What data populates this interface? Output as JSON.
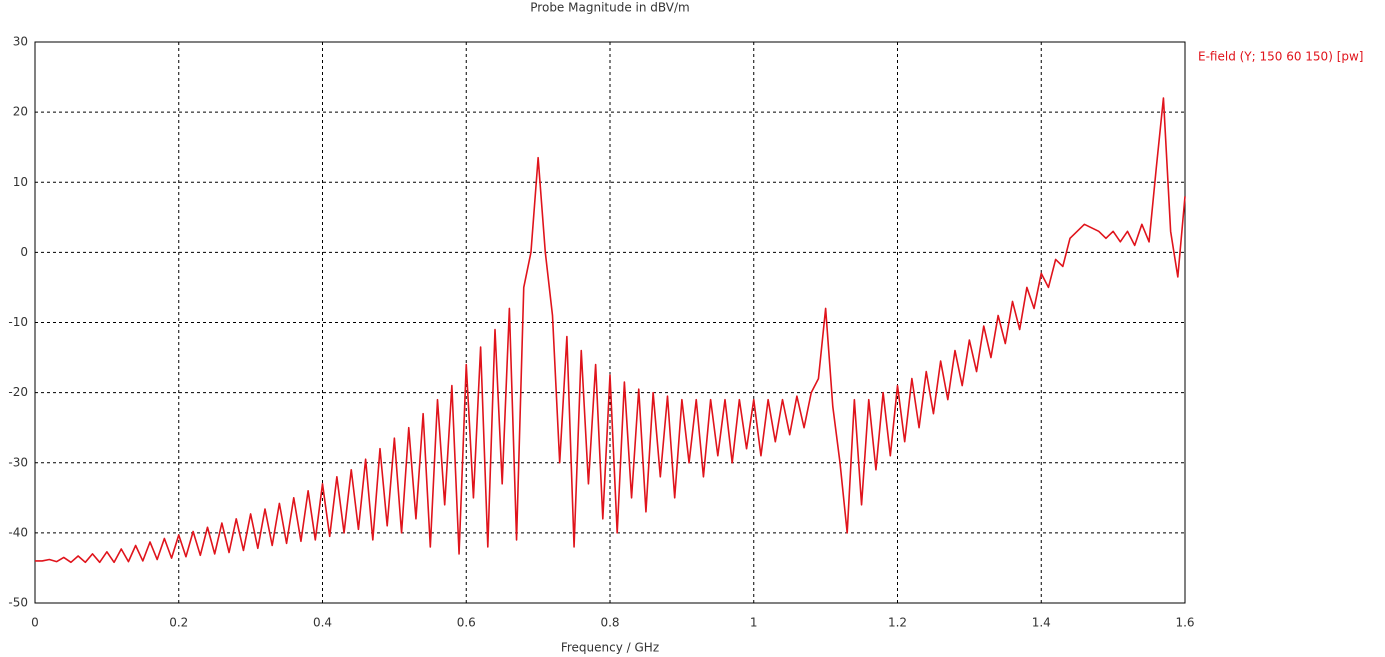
{
  "chart_data": {
    "type": "line",
    "title": "Probe Magnitude in dBV/m",
    "x_label": "Frequency / GHz",
    "x": [
      0,
      0.01,
      0.02,
      0.03,
      0.04,
      0.05,
      0.06,
      0.07,
      0.08,
      0.09,
      0.1,
      0.11,
      0.12,
      0.13,
      0.14,
      0.15,
      0.16,
      0.17,
      0.18,
      0.19,
      0.2,
      0.21,
      0.22,
      0.23,
      0.24,
      0.25,
      0.26,
      0.27,
      0.28,
      0.29,
      0.3,
      0.31,
      0.32,
      0.33,
      0.34,
      0.35,
      0.36,
      0.37,
      0.38,
      0.39,
      0.4,
      0.41,
      0.42,
      0.43,
      0.44,
      0.45,
      0.46,
      0.47,
      0.48,
      0.49,
      0.5,
      0.51,
      0.52,
      0.53,
      0.54,
      0.55,
      0.56,
      0.57,
      0.58,
      0.59,
      0.6,
      0.61,
      0.62,
      0.63,
      0.64,
      0.65,
      0.66,
      0.67,
      0.68,
      0.69,
      0.7,
      0.71,
      0.72,
      0.73,
      0.74,
      0.75,
      0.76,
      0.77,
      0.78,
      0.79,
      0.8,
      0.81,
      0.82,
      0.83,
      0.84,
      0.85,
      0.86,
      0.87,
      0.88,
      0.89,
      0.9,
      0.91,
      0.92,
      0.93,
      0.94,
      0.95,
      0.96,
      0.97,
      0.98,
      0.99,
      1,
      1.01,
      1.02,
      1.03,
      1.04,
      1.05,
      1.06,
      1.07,
      1.08,
      1.09,
      1.1,
      1.11,
      1.12,
      1.13,
      1.14,
      1.15,
      1.16,
      1.17,
      1.18,
      1.19,
      1.2,
      1.21,
      1.22,
      1.23,
      1.24,
      1.25,
      1.26,
      1.27,
      1.28,
      1.29,
      1.3,
      1.31,
      1.32,
      1.33,
      1.34,
      1.35,
      1.36,
      1.37,
      1.38,
      1.39,
      1.4,
      1.41,
      1.42,
      1.43,
      1.44,
      1.45,
      1.46,
      1.47,
      1.48,
      1.49,
      1.5,
      1.51,
      1.52,
      1.53,
      1.54,
      1.55,
      1.56,
      1.57,
      1.58,
      1.59,
      1.6
    ],
    "series": [
      {
        "name": "E-field (Y; 150 60 150) [pw]",
        "color": "#e0141c",
        "values": [
          -44,
          -44,
          -43.8,
          -44.1,
          -43.5,
          -44.2,
          -43.3,
          -44.2,
          -43,
          -44.2,
          -42.7,
          -44.2,
          -42.3,
          -44.1,
          -41.8,
          -44,
          -41.3,
          -43.8,
          -40.8,
          -43.6,
          -40.3,
          -43.4,
          -39.8,
          -43.2,
          -39.2,
          -43,
          -38.6,
          -42.8,
          -38,
          -42.5,
          -37.3,
          -42.2,
          -36.6,
          -41.8,
          -35.8,
          -41.5,
          -35,
          -41.2,
          -34,
          -41,
          -33,
          -40.5,
          -32,
          -40,
          -31,
          -39.5,
          -29.5,
          -41,
          -28,
          -39,
          -26.5,
          -40,
          -25,
          -38,
          -23,
          -42,
          -21,
          -36,
          -19,
          -43,
          -16,
          -35,
          -13.5,
          -42,
          -11,
          -33,
          -8,
          -41,
          -5,
          0,
          13.5,
          0,
          -9,
          -30,
          -12,
          -42,
          -14,
          -33,
          -16,
          -38,
          -17.5,
          -40,
          -18.5,
          -35,
          -19.5,
          -37,
          -20,
          -32,
          -20.5,
          -35,
          -21,
          -30,
          -21,
          -32,
          -21,
          -29,
          -21,
          -30,
          -21,
          -28,
          -21,
          -29,
          -21,
          -27,
          -21,
          -26,
          -20.5,
          -25,
          -20,
          -18,
          -8,
          -22,
          -30,
          -40,
          -21,
          -36,
          -21,
          -31,
          -20,
          -29,
          -19,
          -27,
          -18,
          -25,
          -17,
          -23,
          -15.5,
          -21,
          -14,
          -19,
          -12.5,
          -17,
          -10.5,
          -15,
          -9,
          -13,
          -7,
          -11,
          -5,
          -8,
          -3,
          -5,
          -1,
          -2,
          2,
          3,
          4,
          3.5,
          3,
          2,
          3,
          1.5,
          3,
          1,
          4,
          1.5,
          12,
          22,
          3,
          -3.5,
          8
        ]
      }
    ],
    "xlim": [
      0,
      1.6
    ],
    "xticks": [
      0,
      0.2,
      0.4,
      0.6,
      0.8,
      1,
      1.2,
      1.4,
      1.6
    ],
    "ylim": [
      -50,
      30
    ],
    "yticks": [
      -50,
      -40,
      -30,
      -20,
      -10,
      0,
      10,
      20,
      30
    ],
    "grid": true,
    "legend": "right"
  }
}
